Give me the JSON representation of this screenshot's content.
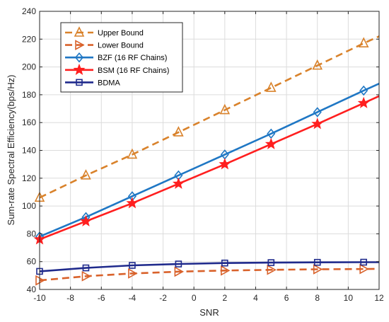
{
  "chart_data": {
    "type": "line",
    "title": "",
    "xlabel": "SNR",
    "ylabel": "Sum-rate Spectral Efficiency(bps/Hz)",
    "xlim": [
      -10,
      12
    ],
    "ylim": [
      40,
      240
    ],
    "xticks": [
      -10,
      -8,
      -6,
      -4,
      -2,
      0,
      2,
      4,
      6,
      8,
      10,
      12
    ],
    "yticks": [
      40,
      60,
      80,
      100,
      120,
      140,
      160,
      180,
      200,
      220,
      240
    ],
    "grid": true,
    "legend_position": "top-left",
    "series": [
      {
        "name": "Upper Bound",
        "color": "#D9822B",
        "line_style": "dashed",
        "marker": "triangle-up",
        "x": [
          -10,
          -7,
          -4,
          -1,
          2,
          5,
          8,
          11,
          12
        ],
        "y": [
          106,
          122,
          137,
          153,
          169,
          185,
          201,
          217,
          222
        ]
      },
      {
        "name": "Lower Bound",
        "color": "#D9622B",
        "line_style": "dashed",
        "marker": "triangle-right",
        "x": [
          -10,
          -7,
          -4,
          -1,
          2,
          5,
          8,
          11,
          12
        ],
        "y": [
          46.5,
          49.5,
          51.5,
          52.8,
          53.6,
          54.1,
          54.5,
          54.7,
          54.8
        ]
      },
      {
        "name": "BZF (16 RF Chains)",
        "color": "#1F77C4",
        "line_style": "solid",
        "marker": "diamond",
        "x": [
          -10,
          -7,
          -4,
          -1,
          2,
          5,
          8,
          11,
          12
        ],
        "y": [
          78,
          92,
          107,
          122,
          137,
          152,
          167.5,
          183,
          188
        ]
      },
      {
        "name": "BSM (16 RF Chains)",
        "color": "#FF1F1F",
        "line_style": "solid",
        "marker": "star",
        "x": [
          -10,
          -7,
          -4,
          -1,
          2,
          5,
          8,
          11,
          12
        ],
        "y": [
          76,
          89,
          102,
          116,
          130,
          144.5,
          159,
          174,
          179
        ]
      },
      {
        "name": "BDMA",
        "color": "#1F2A8C",
        "line_style": "solid",
        "marker": "square",
        "x": [
          -10,
          -7,
          -4,
          -1,
          2,
          5,
          8,
          11,
          12
        ],
        "y": [
          53,
          55.5,
          57.3,
          58.3,
          59,
          59.3,
          59.5,
          59.6,
          59.6
        ]
      }
    ]
  }
}
